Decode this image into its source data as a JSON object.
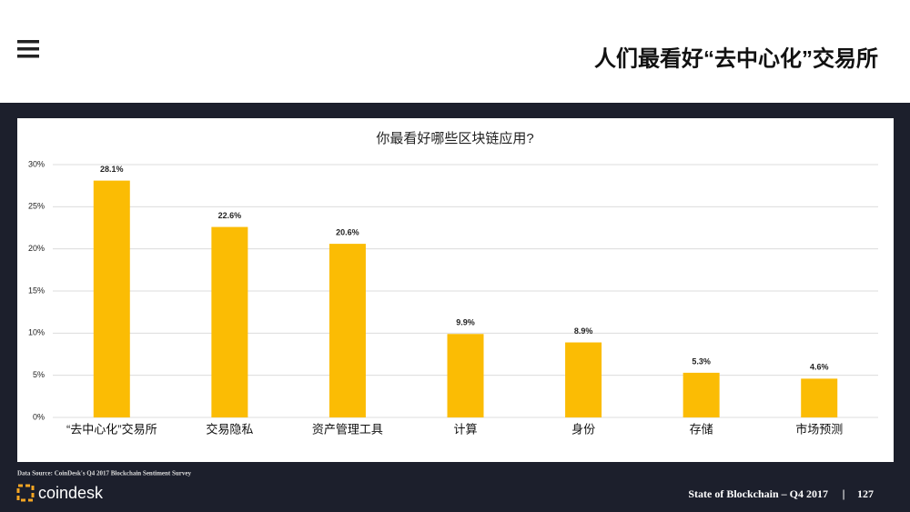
{
  "header": {
    "title": "人们最看好“去中心化”交易所"
  },
  "chart_data": {
    "type": "bar",
    "title": "你最看好哪些区块链应用?",
    "categories": [
      "“去中心化”交易所",
      "交易隐私",
      "资产管理工具",
      "计算",
      "身份",
      "存储",
      "市场预测"
    ],
    "values": [
      28.1,
      22.6,
      20.6,
      9.9,
      8.9,
      5.3,
      4.6
    ],
    "value_labels": [
      "28.1%",
      "22.6%",
      "20.6%",
      "9.9%",
      "8.9%",
      "5.3%",
      "4.6%"
    ],
    "color": "#fbbc04",
    "ylim": [
      0,
      30
    ],
    "yticks": [
      {
        "value": 0,
        "label": "0%"
      },
      {
        "value": 5,
        "label": "5%"
      },
      {
        "value": 10,
        "label": "10%"
      },
      {
        "value": 15,
        "label": "15%"
      },
      {
        "value": 20,
        "label": "20%"
      },
      {
        "value": 25,
        "label": "25%"
      },
      {
        "value": 30,
        "label": "30%"
      }
    ],
    "grid": true
  },
  "footer": {
    "source": "Data Source: CoinDesk's Q4 2017 Blockchain Sentiment Survey",
    "brand": "coindesk",
    "report": "State of Blockchain – Q4 2017",
    "page": "127"
  }
}
